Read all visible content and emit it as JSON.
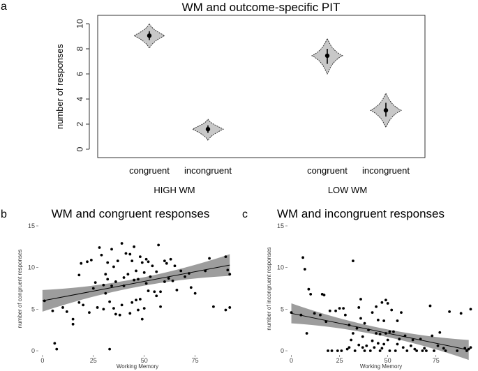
{
  "chart_data": [
    {
      "panel": "a",
      "type": "violin",
      "title": "WM and outcome-specific PIT",
      "ylabel": "number of responses",
      "ylim": [
        0,
        10
      ],
      "yticks": [
        "0",
        "2",
        "4",
        "6",
        "8",
        "10"
      ],
      "groups": [
        {
          "label": "HIGH WM",
          "categories": [
            {
              "label": "congruent",
              "mean": 9.05,
              "ci": [
                8.7,
                9.4
              ],
              "spread": [
                8.05,
                10.0
              ]
            },
            {
              "label": "incongruent",
              "mean": 1.6,
              "ci": [
                1.3,
                1.9
              ],
              "spread": [
                0.7,
                2.4
              ]
            }
          ]
        },
        {
          "label": "LOW WM",
          "categories": [
            {
              "label": "congruent",
              "mean": 7.45,
              "ci": [
                6.8,
                8.0
              ],
              "spread": [
                6.0,
                8.8
              ]
            },
            {
              "label": "incongruent",
              "mean": 3.1,
              "ci": [
                2.6,
                3.7
              ],
              "spread": [
                1.75,
                4.45
              ]
            }
          ]
        }
      ],
      "color": "#c8c8c8"
    },
    {
      "panel": "b",
      "type": "scatter",
      "title": "WM and congruent responses",
      "xlabel": "Working Memory",
      "ylabel": "number of congruent responses",
      "xlim": [
        -2,
        95
      ],
      "ylim": [
        -0.5,
        15.5
      ],
      "xticks": [
        "0",
        "25",
        "50",
        "75"
      ],
      "yticks": [
        "0",
        "5",
        "10",
        "15"
      ],
      "fit": {
        "x": [
          0,
          92
        ],
        "y": [
          6.0,
          10.3
        ],
        "band_halfwidth_ends": 1.3,
        "band_halfwidth_mid": 0.5
      },
      "points": [
        [
          1,
          6
        ],
        [
          5,
          4.8
        ],
        [
          6,
          0.9
        ],
        [
          7,
          0.2
        ],
        [
          10,
          5.2
        ],
        [
          12,
          4.7
        ],
        [
          15,
          3.2
        ],
        [
          15,
          3.8
        ],
        [
          18,
          9.1
        ],
        [
          18,
          5.8
        ],
        [
          19,
          10.5
        ],
        [
          20,
          5.5
        ],
        [
          22,
          10.7
        ],
        [
          23,
          4.6
        ],
        [
          24,
          10.9
        ],
        [
          25,
          7.5
        ],
        [
          26,
          8.2
        ],
        [
          27,
          5.2
        ],
        [
          28,
          12.4
        ],
        [
          29,
          11.5
        ],
        [
          30,
          7.9
        ],
        [
          30,
          5
        ],
        [
          31,
          9.2
        ],
        [
          31,
          6.9
        ],
        [
          32,
          10.6
        ],
        [
          32,
          8.6
        ],
        [
          33,
          0.2
        ],
        [
          33,
          5.9
        ],
        [
          34,
          12.2
        ],
        [
          34,
          7.8
        ],
        [
          35,
          10.1
        ],
        [
          35,
          5.1
        ],
        [
          36,
          8.3
        ],
        [
          36,
          4.4
        ],
        [
          37,
          10.8
        ],
        [
          38,
          4.3
        ],
        [
          39,
          12.9
        ],
        [
          39,
          5.5
        ],
        [
          40,
          8.8
        ],
        [
          40,
          7.8
        ],
        [
          41,
          11.7
        ],
        [
          42,
          9.2
        ],
        [
          43,
          11.6
        ],
        [
          43,
          4.5
        ],
        [
          44,
          10.8
        ],
        [
          44,
          5.8
        ],
        [
          45,
          12.5
        ],
        [
          45,
          8.5
        ],
        [
          46,
          9.6
        ],
        [
          46,
          6.1
        ],
        [
          47,
          8.6
        ],
        [
          47,
          4.9
        ],
        [
          48,
          11.3
        ],
        [
          48,
          6.2
        ],
        [
          49,
          10.6
        ],
        [
          49,
          3.8
        ],
        [
          50,
          9.4
        ],
        [
          50,
          5.1
        ],
        [
          51,
          11
        ],
        [
          51,
          8.1
        ],
        [
          52,
          10.7
        ],
        [
          52,
          7.2
        ],
        [
          53,
          8.9
        ],
        [
          54,
          10.2
        ],
        [
          55,
          7.1
        ],
        [
          56,
          9.5
        ],
        [
          56,
          6.6
        ],
        [
          57,
          12.7
        ],
        [
          58,
          7.1
        ],
        [
          58,
          5.3
        ],
        [
          60,
          10.8
        ],
        [
          60,
          8.3
        ],
        [
          61,
          10.5
        ],
        [
          62,
          8.7
        ],
        [
          63,
          11
        ],
        [
          64,
          8.4
        ],
        [
          65,
          10.2
        ],
        [
          66,
          7.3
        ],
        [
          68,
          9.6
        ],
        [
          70,
          8.9
        ],
        [
          72,
          9.3
        ],
        [
          73,
          7.6
        ],
        [
          75,
          6.9
        ],
        [
          80,
          9.6
        ],
        [
          82,
          11.1
        ],
        [
          84,
          5.3
        ],
        [
          90,
          11.3
        ],
        [
          90,
          4.9
        ],
        [
          91,
          9.7
        ],
        [
          92,
          5.2
        ],
        [
          92,
          9.2
        ]
      ]
    },
    {
      "panel": "c",
      "type": "scatter",
      "title": "WM and incongruent responses",
      "xlabel": "Working Memory",
      "ylabel": "number of incongruent responses",
      "xlim": [
        -2,
        95
      ],
      "ylim": [
        -0.5,
        15.5
      ],
      "xticks": [
        "0",
        "25",
        "50",
        "75"
      ],
      "yticks": [
        "0",
        "5",
        "10",
        "15"
      ],
      "fit": {
        "x": [
          0,
          92
        ],
        "y": [
          4.5,
          0.1
        ],
        "band_halfwidth_ends": 1.2,
        "band_halfwidth_mid": 0.45
      },
      "points": [
        [
          0,
          4.6
        ],
        [
          5,
          4.3
        ],
        [
          6,
          11.2
        ],
        [
          7,
          9.8
        ],
        [
          8,
          2.1
        ],
        [
          9,
          7.4
        ],
        [
          10,
          6.8
        ],
        [
          12,
          4.5
        ],
        [
          15,
          4.3
        ],
        [
          16,
          6.8
        ],
        [
          17,
          6.7
        ],
        [
          18,
          3.5
        ],
        [
          19,
          0
        ],
        [
          20,
          4.8
        ],
        [
          21,
          0
        ],
        [
          23,
          4.8
        ],
        [
          24,
          0
        ],
        [
          25,
          5.1
        ],
        [
          26,
          0
        ],
        [
          27,
          5.1
        ],
        [
          28,
          4.3
        ],
        [
          29,
          0.2
        ],
        [
          30,
          3.1
        ],
        [
          30,
          0.4
        ],
        [
          31,
          1.3
        ],
        [
          32,
          10.8
        ],
        [
          32,
          2.1
        ],
        [
          33,
          0
        ],
        [
          34,
          2.7
        ],
        [
          35,
          5.2
        ],
        [
          35,
          0.7
        ],
        [
          36,
          6.2
        ],
        [
          36,
          3.9
        ],
        [
          37,
          1.7
        ],
        [
          37,
          0.4
        ],
        [
          38,
          3.3
        ],
        [
          38,
          0
        ],
        [
          39,
          0.6
        ],
        [
          40,
          2.5
        ],
        [
          41,
          0
        ],
        [
          42,
          4.6
        ],
        [
          42,
          1.2
        ],
        [
          43,
          0.4
        ],
        [
          44,
          5.3
        ],
        [
          44,
          2.1
        ],
        [
          45,
          3.7
        ],
        [
          45,
          0.9
        ],
        [
          46,
          2
        ],
        [
          46,
          0
        ],
        [
          47,
          5.8
        ],
        [
          47,
          0.3
        ],
        [
          48,
          3.6
        ],
        [
          48,
          0.8
        ],
        [
          49,
          6.1
        ],
        [
          49,
          2.1
        ],
        [
          50,
          5.7
        ],
        [
          50,
          1.3
        ],
        [
          51,
          2.3
        ],
        [
          51,
          0
        ],
        [
          52,
          4.9
        ],
        [
          53,
          2.3
        ],
        [
          54,
          0
        ],
        [
          55,
          3.6
        ],
        [
          55,
          0.8
        ],
        [
          56,
          1.4
        ],
        [
          57,
          4.6
        ],
        [
          58,
          0.4
        ],
        [
          59,
          1.8
        ],
        [
          60,
          0
        ],
        [
          62,
          0.6
        ],
        [
          63,
          1.3
        ],
        [
          64,
          0.2
        ],
        [
          65,
          0
        ],
        [
          67,
          1.4
        ],
        [
          68,
          0
        ],
        [
          69,
          0.3
        ],
        [
          70,
          0
        ],
        [
          72,
          5.4
        ],
        [
          73,
          1.8
        ],
        [
          74,
          0
        ],
        [
          76,
          0.6
        ],
        [
          77,
          2.2
        ],
        [
          79,
          0.3
        ],
        [
          80,
          0
        ],
        [
          82,
          4.7
        ],
        [
          86,
          0
        ],
        [
          88,
          4.5
        ],
        [
          90,
          0.3
        ],
        [
          91,
          0
        ],
        [
          92,
          0.2
        ],
        [
          93,
          0.4
        ],
        [
          93,
          5
        ]
      ]
    }
  ]
}
